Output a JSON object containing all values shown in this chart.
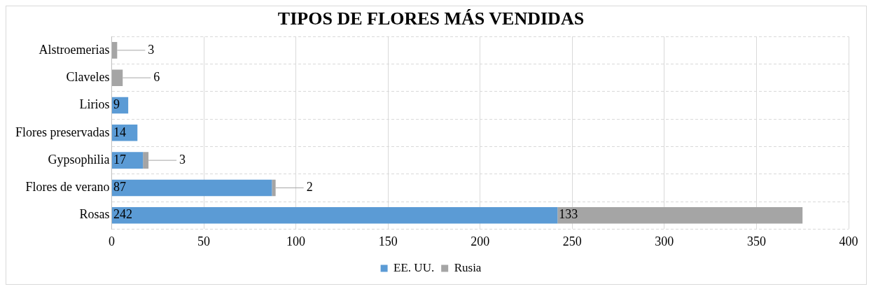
{
  "chart_data": {
    "type": "bar",
    "orientation": "horizontal",
    "stacked": true,
    "title": "TIPOS DE FLORES MÁS VENDIDAS",
    "categories": [
      "Alstroemerias",
      "Claveles",
      "Lirios",
      "Flores preservadas",
      "Gypsophilia",
      "Flores de verano",
      "Rosas"
    ],
    "series": [
      {
        "name": "EE. UU.",
        "color": "#5b9bd5",
        "values": [
          null,
          null,
          9,
          14,
          17,
          87,
          242
        ]
      },
      {
        "name": "Rusia",
        "color": "#a5a5a5",
        "values": [
          3,
          6,
          null,
          null,
          3,
          2,
          133
        ]
      }
    ],
    "xlim": [
      0,
      400
    ],
    "xticks": [
      0,
      50,
      100,
      150,
      200,
      250,
      300,
      350,
      400
    ],
    "grid": true,
    "legend": "bottom",
    "data_labels": true
  }
}
